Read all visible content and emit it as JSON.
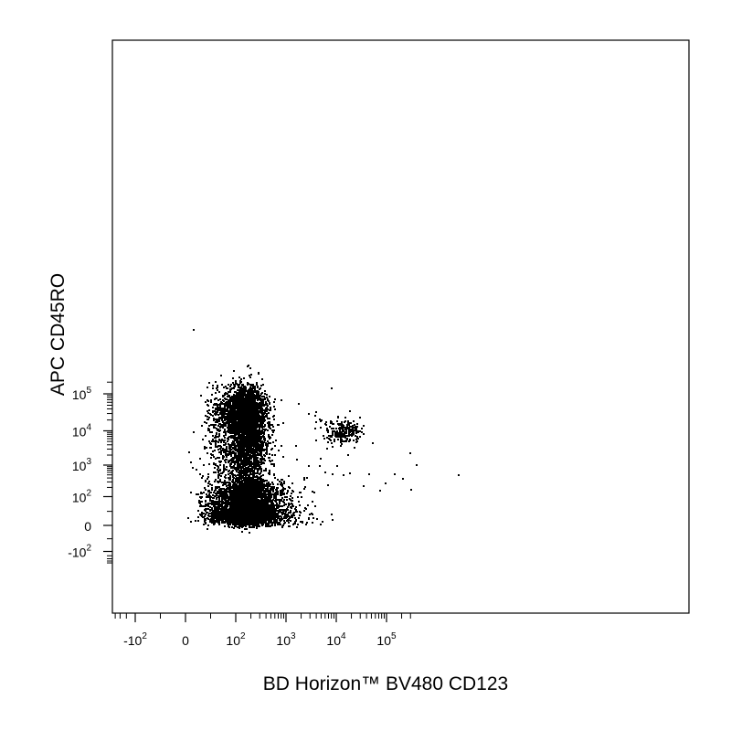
{
  "chart_data": {
    "type": "scatter",
    "title": "",
    "xlabel": "BD Horizon™ BV480 CD123",
    "ylabel": "APC  CD45RO",
    "x_scale": "biexponential (linear near zero, log above ~10^2)",
    "y_scale": "biexponential (linear near zero, log above ~10^2)",
    "xlim": [
      -300,
      300000
    ],
    "ylim": [
      -400,
      250000
    ],
    "x_ticks": [
      {
        "base": "-10",
        "exp": "2",
        "value": -100
      },
      {
        "base": "0",
        "exp": "",
        "value": 0
      },
      {
        "base": "10",
        "exp": "2",
        "value": 100
      },
      {
        "base": "10",
        "exp": "3",
        "value": 1000
      },
      {
        "base": "10",
        "exp": "4",
        "value": 10000
      },
      {
        "base": "10",
        "exp": "5",
        "value": 100000
      }
    ],
    "y_ticks": [
      {
        "base": "-10",
        "exp": "2",
        "value": -100
      },
      {
        "base": "0",
        "exp": "",
        "value": 0
      },
      {
        "base": "10",
        "exp": "2",
        "value": 100
      },
      {
        "base": "10",
        "exp": "3",
        "value": 1000
      },
      {
        "base": "10",
        "exp": "4",
        "value": 10000
      },
      {
        "base": "10",
        "exp": "5",
        "value": 100000
      }
    ],
    "grid": false,
    "legend": "none",
    "point_color": "#000000",
    "populations": [
      {
        "x_center": 150,
        "y_center": 30000,
        "x_spread_decades": 0.18,
        "y_spread_decades": 0.35,
        "approx_events": 2600
      },
      {
        "x_center": 150,
        "y_center": 2500,
        "x_spread_decades": 0.2,
        "y_spread_decades": 0.5,
        "approx_events": 1400
      },
      {
        "x_center": 160,
        "y_center": 60,
        "x_spread_decades": 0.25,
        "y_spread_decades": 0.35,
        "approx_events": 4200
      },
      {
        "x_center": 500,
        "y_center": 50,
        "x_spread_decades": 0.35,
        "y_spread_decades": 0.4,
        "approx_events": 450
      },
      {
        "x_center": 14000,
        "y_center": 10000,
        "x_spread_decades": 0.15,
        "y_spread_decades": 0.15,
        "approx_events": 220
      },
      {
        "x_center": 2000,
        "y_center": 1000,
        "x_spread_decades": 1.1,
        "y_spread_decades": 1.0,
        "approx_events": 60
      }
    ]
  }
}
